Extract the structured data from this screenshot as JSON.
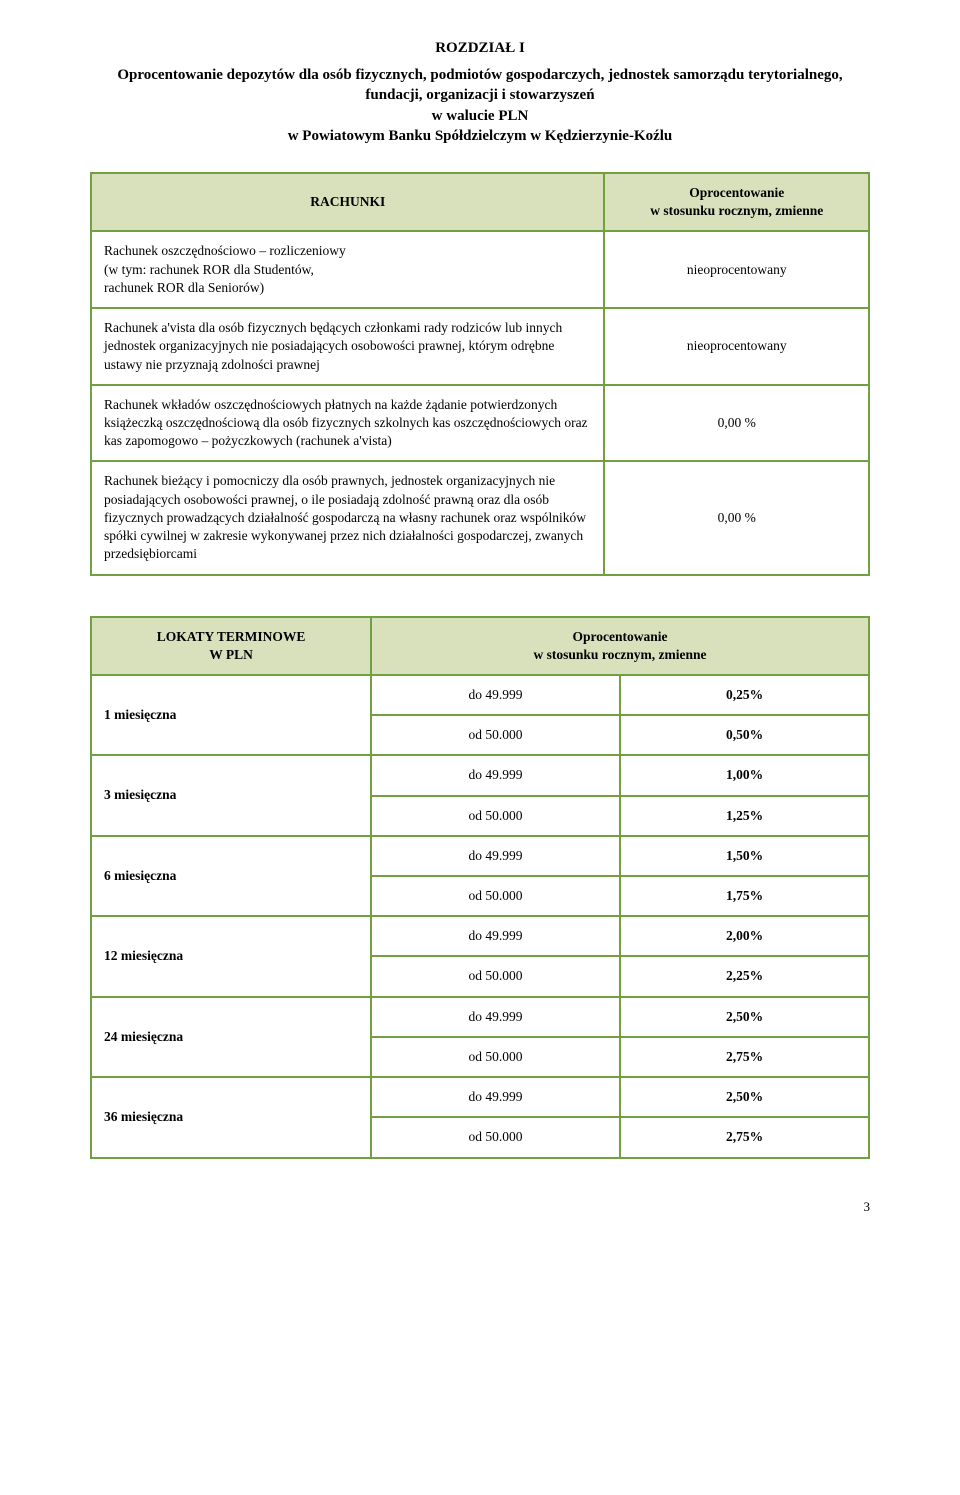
{
  "colors": {
    "border": "#70a040",
    "headerBg": "#d8e1bc",
    "text": "#000000",
    "background": "#ffffff"
  },
  "typography": {
    "family": "Times New Roman",
    "heading_size_pt": 15,
    "body_size_pt": 13.5
  },
  "heading": "ROZDZIAŁ I",
  "subtitle": "Oprocentowanie depozytów dla osób fizycznych, podmiotów gospodarczych, jednostek samorządu terytorialnego, fundacji, organizacji i stowarzyszeń\nw walucie PLN\nw Powiatowym Banku Spółdzielczym w Kędzierzynie-Koźlu",
  "table1": {
    "headers": [
      "RACHUNKI",
      "Oprocentowanie\nw stosunku rocznym, zmienne"
    ],
    "rows": [
      {
        "label": "Rachunek oszczędnościowo – rozliczeniowy\n(w tym: rachunek ROR dla Studentów,\nrachunek ROR dla Seniorów)",
        "value": "nieoprocentowany"
      },
      {
        "label": "Rachunek a'vista dla osób fizycznych będących członkami rady rodziców lub innych jednostek organizacyjnych nie posiadających osobowości prawnej, którym odrębne ustawy nie przyznają zdolności prawnej",
        "value": "nieoprocentowany"
      },
      {
        "label": "Rachunek wkładów oszczędnościowych płatnych na każde żądanie potwierdzonych książeczką oszczędnościową dla osób fizycznych szkolnych kas oszczędnościowych oraz kas zapomogowo – pożyczkowych (rachunek a'vista)",
        "value": "0,00 %"
      },
      {
        "label": "Rachunek bieżący i pomocniczy dla osób prawnych, jednostek organizacyjnych nie posiadających osobowości prawnej, o ile posiadają zdolność prawną oraz dla osób fizycznych prowadzących działalność gospodarczą na własny rachunek oraz wspólników spółki cywilnej w zakresie wykonywanej przez nich działalności gospodarczej, zwanych przedsiębiorcami",
        "value": "0,00 %"
      }
    ]
  },
  "table2": {
    "headers": [
      "LOKATY TERMINOWE\nW PLN",
      "Oprocentowanie\nw stosunku rocznym, zmienne"
    ],
    "thresholds": {
      "low": "do 49.999",
      "high": "od 50.000"
    },
    "rows": [
      {
        "term": "1 miesięczna",
        "low": "0,25%",
        "high": "0,50%"
      },
      {
        "term": "3 miesięczna",
        "low": "1,00%",
        "high": "1,25%"
      },
      {
        "term": "6 miesięczna",
        "low": "1,50%",
        "high": "1,75%"
      },
      {
        "term": "12 miesięczna",
        "low": "2,00%",
        "high": "2,25%"
      },
      {
        "term": "24 miesięczna",
        "low": "2,50%",
        "high": "2,75%"
      },
      {
        "term": "36 miesięczna",
        "low": "2,50%",
        "high": "2,75%"
      }
    ]
  },
  "page_number": "3"
}
